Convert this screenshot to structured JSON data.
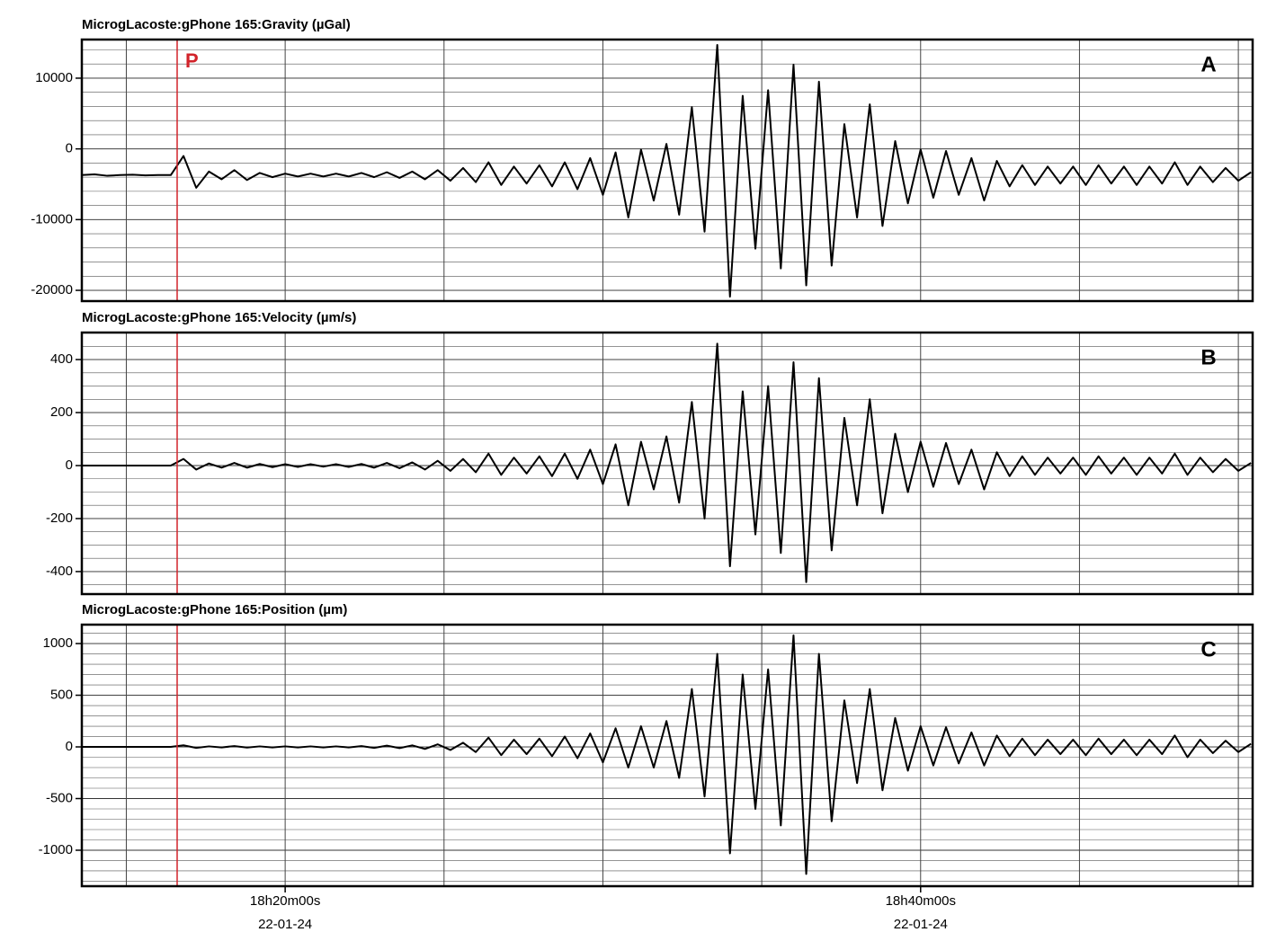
{
  "chart_data": [
    {
      "type": "line",
      "title": "MicrogLacoste:gPhone 165:Gravity (µGal)",
      "panel_label": "A",
      "marker_label": "P",
      "marker_x": 16.6,
      "marker_color": "#d2232a",
      "color": "#000000",
      "xlim": [
        13.6,
        50.45
      ],
      "xgrid": [
        15,
        20,
        25,
        30,
        35,
        40,
        45,
        50
      ],
      "ylim": [
        -21520,
        15460
      ],
      "yticks": [
        10000,
        0,
        -10000,
        -20000
      ],
      "minor_per_tick": 5,
      "x": [
        13.6,
        14.0,
        14.4,
        14.8,
        15.2,
        15.6,
        16.0,
        16.4,
        16.8,
        17.2,
        17.6,
        18.0,
        18.4,
        18.8,
        19.2,
        19.6,
        20.0,
        20.4,
        20.8,
        21.2,
        21.6,
        22.0,
        22.4,
        22.8,
        23.2,
        23.6,
        24.0,
        24.4,
        24.8,
        25.2,
        25.6,
        26.0,
        26.4,
        26.8,
        27.2,
        27.6,
        28.0,
        28.4,
        28.8,
        29.2,
        29.6,
        30.0,
        30.4,
        30.8,
        31.2,
        31.6,
        32.0,
        32.4,
        32.8,
        33.2,
        33.6,
        34.0,
        34.4,
        34.8,
        35.2,
        35.6,
        36.0,
        36.4,
        36.8,
        37.2,
        37.6,
        38.0,
        38.4,
        38.8,
        39.2,
        39.6,
        40.0,
        40.4,
        40.8,
        41.2,
        41.6,
        42.0,
        42.4,
        42.8,
        43.2,
        43.6,
        44.0,
        44.4,
        44.8,
        45.2,
        45.6,
        46.0,
        46.4,
        46.8,
        47.2,
        47.6,
        48.0,
        48.4,
        48.8,
        49.2,
        49.6,
        50.0,
        50.4
      ],
      "values": [
        -3700,
        -3600,
        -3800,
        -3700,
        -3650,
        -3750,
        -3700,
        -3700,
        -1000,
        -5500,
        -3200,
        -4300,
        -3000,
        -4400,
        -3400,
        -4000,
        -3500,
        -3900,
        -3500,
        -3900,
        -3500,
        -3900,
        -3400,
        -4000,
        -3300,
        -4100,
        -3200,
        -4300,
        -3000,
        -4500,
        -2700,
        -4700,
        -1900,
        -5100,
        -2500,
        -4900,
        -2300,
        -5300,
        -1900,
        -5700,
        -1300,
        -6500,
        -500,
        -9700,
        -100,
        -7300,
        700,
        -9300,
        5900,
        -11700,
        14700,
        -20900,
        7500,
        -14100,
        8300,
        -16900,
        11900,
        -19300,
        9500,
        -16500,
        3500,
        -9700,
        6300,
        -10900,
        1100,
        -7700,
        -100,
        -6900,
        -300,
        -6500,
        -1300,
        -7300,
        -1700,
        -5300,
        -2300,
        -5100,
        -2500,
        -4900,
        -2500,
        -5100,
        -2300,
        -4900,
        -2500,
        -5100,
        -2500,
        -4900,
        -1900,
        -5100,
        -2500,
        -4700,
        -2700,
        -4500,
        -3300
      ]
    },
    {
      "type": "line",
      "title": "MicrogLacoste:gPhone 165:Velocity (µm/s)",
      "panel_label": "B",
      "marker_x": 16.6,
      "marker_color": "#d2232a",
      "color": "#000000",
      "xlim": [
        13.6,
        50.45
      ],
      "xgrid": [
        15,
        20,
        25,
        30,
        35,
        40,
        45,
        50
      ],
      "ylim": [
        -485,
        502
      ],
      "yticks": [
        400,
        200,
        0,
        -200,
        -400
      ],
      "minor_per_tick": 4,
      "x": [
        13.6,
        14.0,
        14.4,
        14.8,
        15.2,
        15.6,
        16.0,
        16.4,
        16.8,
        17.2,
        17.6,
        18.0,
        18.4,
        18.8,
        19.2,
        19.6,
        20.0,
        20.4,
        20.8,
        21.2,
        21.6,
        22.0,
        22.4,
        22.8,
        23.2,
        23.6,
        24.0,
        24.4,
        24.8,
        25.2,
        25.6,
        26.0,
        26.4,
        26.8,
        27.2,
        27.6,
        28.0,
        28.4,
        28.8,
        29.2,
        29.6,
        30.0,
        30.4,
        30.8,
        31.2,
        31.6,
        32.0,
        32.4,
        32.8,
        33.2,
        33.6,
        34.0,
        34.4,
        34.8,
        35.2,
        35.6,
        36.0,
        36.4,
        36.8,
        37.2,
        37.6,
        38.0,
        38.4,
        38.8,
        39.2,
        39.6,
        40.0,
        40.4,
        40.8,
        41.2,
        41.6,
        42.0,
        42.4,
        42.8,
        43.2,
        43.6,
        44.0,
        44.4,
        44.8,
        45.2,
        45.6,
        46.0,
        46.4,
        46.8,
        47.2,
        47.6,
        48.0,
        48.4,
        48.8,
        49.2,
        49.6,
        50.0,
        50.4
      ],
      "values": [
        0,
        0,
        0,
        0,
        0,
        0,
        0,
        0,
        25,
        -15,
        8,
        -8,
        10,
        -8,
        6,
        -6,
        5,
        -5,
        5,
        -4,
        5,
        -5,
        6,
        -8,
        10,
        -10,
        12,
        -15,
        18,
        -20,
        25,
        -25,
        45,
        -35,
        30,
        -30,
        35,
        -40,
        45,
        -50,
        60,
        -70,
        80,
        -150,
        90,
        -90,
        110,
        -140,
        240,
        -200,
        460,
        -380,
        280,
        -260,
        300,
        -330,
        390,
        -440,
        330,
        -320,
        180,
        -150,
        250,
        -180,
        120,
        -100,
        90,
        -80,
        85,
        -70,
        60,
        -90,
        50,
        -40,
        35,
        -35,
        30,
        -30,
        30,
        -35,
        35,
        -30,
        30,
        -35,
        30,
        -30,
        45,
        -35,
        30,
        -25,
        25,
        -20,
        10
      ]
    },
    {
      "type": "line",
      "title": "MicrogLacoste:gPhone 165:Position (µm)",
      "panel_label": "C",
      "marker_x": 16.6,
      "marker_color": "#d2232a",
      "color": "#000000",
      "xlim": [
        13.6,
        50.45
      ],
      "xgrid": [
        15,
        20,
        25,
        30,
        35,
        40,
        45,
        50
      ],
      "xticks": [
        {
          "value": 20,
          "label": "18h20m00s"
        },
        {
          "value": 40,
          "label": "18h40m00s"
        }
      ],
      "date_label": "22-01-24",
      "ylim": [
        -1348,
        1183
      ],
      "yticks": [
        1000,
        500,
        0,
        -500,
        -1000
      ],
      "minor_per_tick": 5,
      "x": [
        13.6,
        14.0,
        14.4,
        14.8,
        15.2,
        15.6,
        16.0,
        16.4,
        16.8,
        17.2,
        17.6,
        18.0,
        18.4,
        18.8,
        19.2,
        19.6,
        20.0,
        20.4,
        20.8,
        21.2,
        21.6,
        22.0,
        22.4,
        22.8,
        23.2,
        23.6,
        24.0,
        24.4,
        24.8,
        25.2,
        25.6,
        26.0,
        26.4,
        26.8,
        27.2,
        27.6,
        28.0,
        28.4,
        28.8,
        29.2,
        29.6,
        30.0,
        30.4,
        30.8,
        31.2,
        31.6,
        32.0,
        32.4,
        32.8,
        33.2,
        33.6,
        34.0,
        34.4,
        34.8,
        35.2,
        35.6,
        36.0,
        36.4,
        36.8,
        37.2,
        37.6,
        38.0,
        38.4,
        38.8,
        39.2,
        39.6,
        40.0,
        40.4,
        40.8,
        41.2,
        41.6,
        42.0,
        42.4,
        42.8,
        43.2,
        43.6,
        44.0,
        44.4,
        44.8,
        45.2,
        45.6,
        46.0,
        46.4,
        46.8,
        47.2,
        47.6,
        48.0,
        48.4,
        48.8,
        49.2,
        49.6,
        50.0,
        50.4
      ],
      "values": [
        0,
        0,
        0,
        0,
        0,
        0,
        0,
        0,
        15,
        -10,
        5,
        -5,
        8,
        -6,
        5,
        -5,
        5,
        -5,
        5,
        -5,
        5,
        -5,
        8,
        -10,
        12,
        -12,
        15,
        -20,
        25,
        -30,
        40,
        -50,
        90,
        -80,
        70,
        -70,
        80,
        -90,
        100,
        -110,
        130,
        -150,
        180,
        -200,
        200,
        -200,
        250,
        -300,
        560,
        -480,
        900,
        -1030,
        700,
        -600,
        750,
        -760,
        1080,
        -1230,
        900,
        -720,
        450,
        -350,
        560,
        -420,
        280,
        -230,
        200,
        -180,
        190,
        -160,
        140,
        -180,
        110,
        -90,
        80,
        -80,
        70,
        -70,
        70,
        -80,
        80,
        -70,
        70,
        -80,
        70,
        -70,
        110,
        -100,
        70,
        -60,
        60,
        -50,
        30
      ]
    }
  ]
}
